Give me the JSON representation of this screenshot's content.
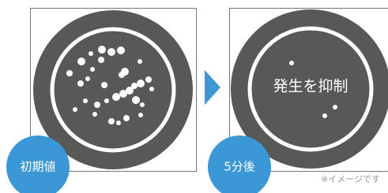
{
  "panels": [
    {
      "label": "初期値"
    },
    {
      "label": "5分後",
      "text": "発生を抑制"
    }
  ],
  "note": "※イメージです"
}
